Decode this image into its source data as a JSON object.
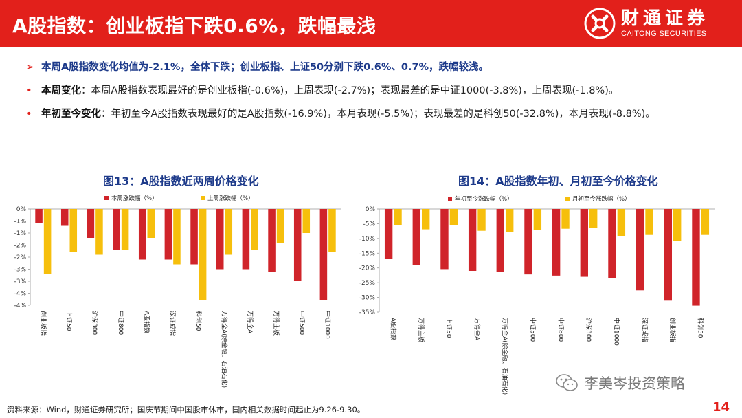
{
  "header": {
    "title": "A股指数：创业板指下跌0.6%，跌幅最浅",
    "logo_cn": "财通证券",
    "logo_en": "CAITONG SECURITIES",
    "bg_color": "#e2201b"
  },
  "bullets": [
    {
      "mark": "➢",
      "strong": "",
      "text": "本周A股指数变化均值为-2.1%，全体下跌；创业板指、上证50分别下跌0.6%、0.7%，跌幅较浅。"
    },
    {
      "mark": "•",
      "strong": "本周变化",
      "text": "：本周A股指数表现最好的是创业板指(-0.6%)，上周表现(-2.7%)；表现最差的是中证1000(-3.8%)，上周表现(-1.8%)。"
    },
    {
      "mark": "•",
      "strong": "年初至今变化",
      "text": "：年初至今A股指数表现最好的是A股指数(-16.9%)，本月表现(-5.5%)；表现最差的是科创50(-32.8%)，本月表现(-8.8%)。"
    }
  ],
  "chart_data": [
    {
      "type": "bar",
      "title": "图13：A股指数近两周价格变化",
      "categories": [
        "创业板指",
        "上证50",
        "沪深300",
        "中证800",
        "A股指数",
        "深证成指",
        "科创50",
        "万得全A(除金融、石油石化)",
        "万得全A",
        "万得主板",
        "中证500",
        "中证1000"
      ],
      "series": [
        {
          "name": "本周涨跌幅（%）",
          "color": "#d0242a",
          "values": [
            -0.6,
            -0.7,
            -1.2,
            -1.7,
            -2.1,
            -2.1,
            -2.3,
            -2.5,
            -2.5,
            -2.6,
            -3.0,
            -3.8
          ]
        },
        {
          "name": "上周涨跌幅（%）",
          "color": "#f6bf0c",
          "values": [
            -2.7,
            -1.8,
            -1.9,
            -1.7,
            -1.2,
            -2.3,
            -3.8,
            -1.9,
            -1.7,
            -1.4,
            -1.0,
            -1.8
          ]
        }
      ],
      "ylim": [
        -4,
        0
      ],
      "yticks": [
        0,
        -0.5,
        -1,
        -1.5,
        -2,
        -2.5,
        -3,
        -3.5,
        -4
      ],
      "ytick_labels": [
        "0%",
        "-1%",
        "-1%",
        "-2%",
        "-2%",
        "-3%",
        "-3%",
        "-4%",
        "-4%"
      ],
      "legend": "top",
      "grid": false
    },
    {
      "type": "bar",
      "title": "图14：A股指数年初、月初至今价格变化",
      "categories": [
        "A股指数",
        "万得主板",
        "上证50",
        "万得全A",
        "万得全A(除金融、石油石化)",
        "中证500",
        "中证800",
        "沪深300",
        "中证1000",
        "深证成指",
        "创业板指",
        "科创50"
      ],
      "series": [
        {
          "name": "年初至今涨跌幅（%）",
          "color": "#d0242a",
          "values": [
            -16.9,
            -18.9,
            -20.4,
            -21.0,
            -21.3,
            -22.2,
            -22.6,
            -23.0,
            -23.5,
            -27.6,
            -31.1,
            -32.8
          ]
        },
        {
          "name": "月初至今涨跌幅（%）",
          "color": "#f6bf0c",
          "values": [
            -5.5,
            -6.9,
            -5.5,
            -7.4,
            -7.8,
            -7.2,
            -6.7,
            -6.5,
            -9.3,
            -8.8,
            -10.9,
            -8.8
          ]
        }
      ],
      "ylim": [
        -35,
        0
      ],
      "yticks": [
        0,
        -5,
        -10,
        -15,
        -20,
        -25,
        -30,
        -35
      ],
      "ytick_labels": [
        "0%",
        "-5%",
        "-10%",
        "-15%",
        "-20%",
        "-25%",
        "-30%",
        "-35%"
      ],
      "legend": "top",
      "grid": false
    }
  ],
  "footer": {
    "source": "资料来源：Wind，财通证券研究所；国庆节期间中国股市休市，国内相关数据时间起止为9.26-9.30。",
    "watermark": "李美岑投资策略",
    "page": "14"
  }
}
